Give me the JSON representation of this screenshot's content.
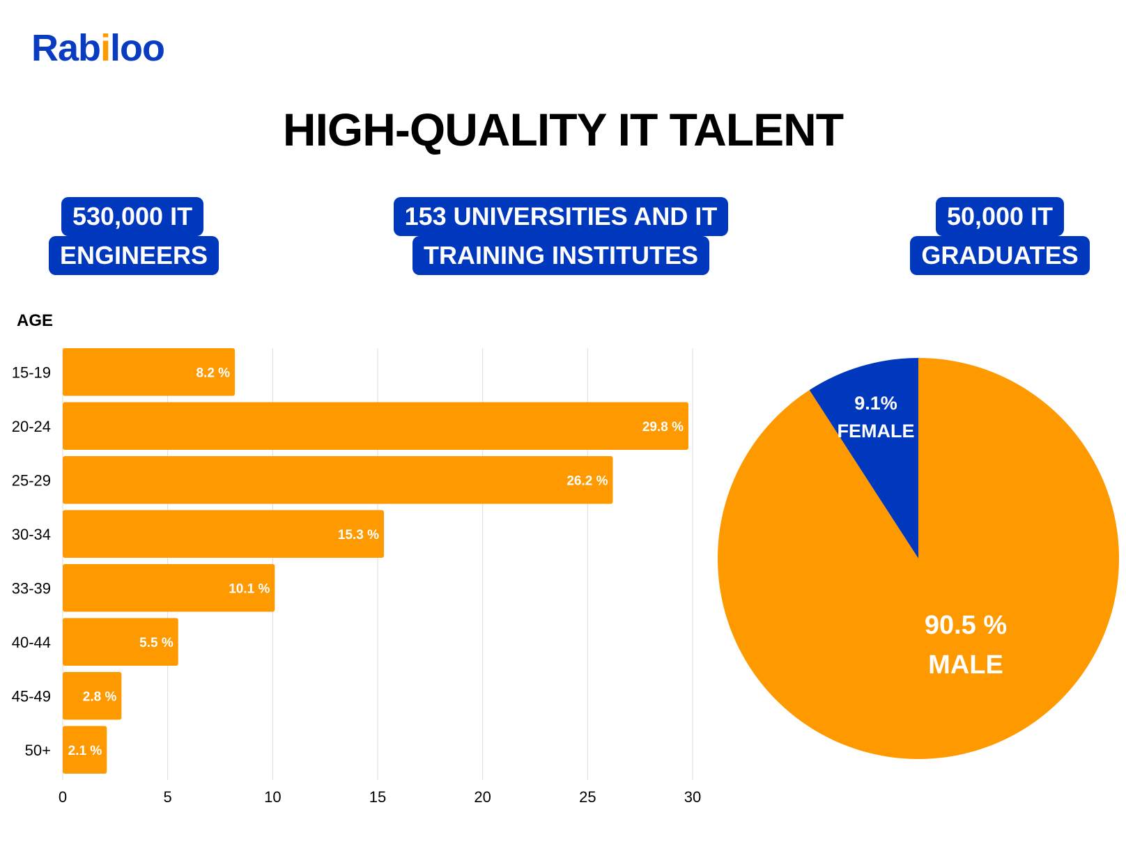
{
  "logo": {
    "text": "Rabiloo"
  },
  "title": "HIGH-QUALITY IT TALENT",
  "badges": [
    {
      "line1": "530,000 IT",
      "line2": "ENGINEERS"
    },
    {
      "line1": "153 UNIVERSITIES AND IT",
      "line2": "TRAINING INSTITUTES"
    },
    {
      "line1": "50,000 IT",
      "line2": "GRADUATES"
    }
  ],
  "colors": {
    "orange": "#FF9900",
    "blue": "#0038BD",
    "grid": "#DDDDDD"
  },
  "chart_data": [
    {
      "type": "bar",
      "orientation": "horizontal",
      "ylabel": "AGE",
      "categories": [
        "15-19",
        "20-24",
        "25-29",
        "30-34",
        "33-39",
        "40-44",
        "45-49",
        "50+"
      ],
      "values": [
        8.2,
        29.8,
        26.2,
        15.3,
        10.1,
        5.5,
        2.8,
        2.1
      ],
      "data_labels": [
        "8.2 %",
        "29.8 %",
        "26.2 %",
        "15.3 %",
        "10.1 %",
        "5.5 %",
        "2.8 %",
        "2.1 %"
      ],
      "xlim": [
        0,
        30
      ],
      "xticks": [
        "0",
        "5",
        "10",
        "15",
        "20",
        "25",
        "30"
      ],
      "grid": true
    },
    {
      "type": "pie",
      "slices": [
        {
          "label": "FEMALE",
          "value": 9.1,
          "value_label": "9.1%"
        },
        {
          "label": "MALE",
          "value": 90.5,
          "value_label": "90.5 %"
        }
      ]
    }
  ]
}
